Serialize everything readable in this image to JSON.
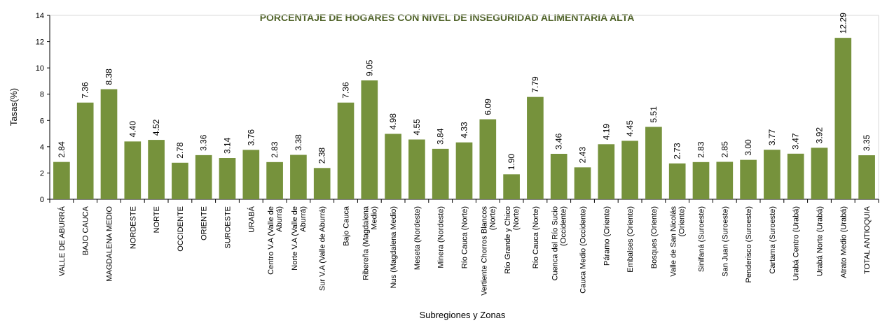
{
  "chart_data": {
    "type": "bar",
    "title": "PORCENTAJE DE HOGARES CON NIVEL DE INSEGURIDAD ALIMENTARIA ALTA",
    "xlabel": "Subregiones y Zonas",
    "ylabel": "Tasas(%)",
    "ylim": [
      0,
      14
    ],
    "yticks": [
      "0",
      "2",
      "4",
      "6",
      "8",
      "10",
      "12",
      "14"
    ],
    "grid": false,
    "legend": "none",
    "bar_color": "#76923c",
    "title_color": "#4f6228",
    "categories": [
      [
        "VALLE DE ABURRÁ"
      ],
      [
        "BAJO CAUCA"
      ],
      [
        "MAGDALENA MEDIO"
      ],
      [
        "NORDESTE"
      ],
      [
        "NORTE"
      ],
      [
        "OCCIDENTE"
      ],
      [
        "ORIENTE"
      ],
      [
        "SUROESTE"
      ],
      [
        "URABÁ"
      ],
      [
        "Centro V.A (Valle de",
        "Aburrá)"
      ],
      [
        "Norte V.A (Valle de",
        "Aburrá)"
      ],
      [
        "Sur V.A (Valle de Aburrá)"
      ],
      [
        "Bajo Cauca"
      ],
      [
        "Ribereña (Magdalena",
        "Medio)"
      ],
      [
        "Nus (Magdalena Medio)"
      ],
      [
        "Meseta (Nordeste)"
      ],
      [
        "Minera (Nordeste)"
      ],
      [
        "Río Cauca (Norte)"
      ],
      [
        "Vertiente Chorros Blancos",
        "(Norte)"
      ],
      [
        "Río Grande y Chico",
        "(Norte)"
      ],
      [
        "Río Cauca (Norte)"
      ],
      [
        "Cuenca del Río Sucio",
        "(Occidente)"
      ],
      [
        "Cauca Medio (Occidente)"
      ],
      [
        "Páramo (Oriente)"
      ],
      [
        "Embalses (Oriente)"
      ],
      [
        "Bosques (Oriente)"
      ],
      [
        "Valle de San Nicolás",
        "(Oriente)"
      ],
      [
        "Sinifaná (Suroeste)"
      ],
      [
        "San Juan (Suroeste)"
      ],
      [
        "Penderisco (Suroeste)"
      ],
      [
        "Cartama (Suroeste)"
      ],
      [
        "Urabá Centro (Urabá)"
      ],
      [
        "Urabá Norte (Urabá)"
      ],
      [
        "Atrato Medio (Urabá)"
      ],
      [
        "TOTAL ANTIOQUIA"
      ]
    ],
    "values": [
      2.84,
      7.36,
      8.38,
      4.4,
      4.52,
      2.78,
      3.36,
      3.14,
      3.76,
      2.83,
      3.38,
      2.38,
      7.36,
      9.05,
      4.98,
      4.55,
      3.84,
      4.33,
      6.09,
      1.9,
      7.79,
      3.46,
      2.43,
      4.19,
      4.45,
      5.51,
      2.73,
      2.83,
      2.85,
      3.0,
      3.77,
      3.47,
      3.92,
      12.29,
      3.35
    ],
    "data_labels": [
      "2.84",
      "7.36",
      "8.38",
      "4.40",
      "4.52",
      "2.78",
      "3.36",
      "3.14",
      "3.76",
      "2.83",
      "3.38",
      "2.38",
      "7.36",
      "9.05",
      "4.98",
      "4.55",
      "3.84",
      "4.33",
      "6.09",
      "1.90",
      "7.79",
      "3.46",
      "2.43",
      "4.19",
      "4.45",
      "5.51",
      "2.73",
      "2.83",
      "2.85",
      "3.00",
      "3.77",
      "3.47",
      "3.92",
      "12.29",
      "3.35"
    ]
  }
}
